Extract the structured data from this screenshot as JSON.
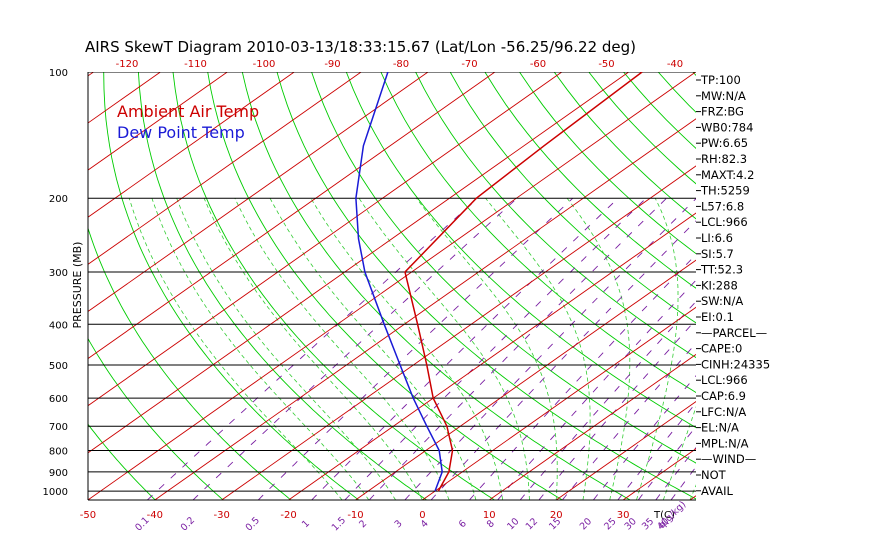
{
  "chart_data": {
    "type": "line",
    "title": "AIRS SkewT Diagram 2010-03-13/18:33:15.67 (Lat/Lon -56.25/96.22 deg)",
    "ylabel": "PRESSURE (MB)",
    "pressure_ticks": [
      100,
      200,
      300,
      400,
      500,
      600,
      700,
      800,
      900,
      1000
    ],
    "bottom_temp_ticks": [
      -50,
      -40,
      -30,
      -20,
      -10,
      0,
      10,
      20,
      30
    ],
    "bottom_temp_unit_label": "T(C)",
    "top_temp_ticks": [
      -120,
      -110,
      -100,
      -90,
      -80,
      -70,
      -60,
      -50,
      -40
    ],
    "mixing_ratio_ticks": [
      "0.1",
      "0.2",
      "0.5",
      "1",
      "1.5",
      "2",
      "3",
      "4",
      "6",
      "8",
      "10",
      "12",
      "15",
      "20",
      "25",
      "30",
      "35",
      "40"
    ],
    "mixing_ratio_unit_label": "q(g/kg)",
    "legend": {
      "air": "Ambient Air Temp",
      "dew": "Dew Point Temp"
    },
    "series": [
      {
        "name": "Ambient Air Temp",
        "color": "#cc0000",
        "points": [
          {
            "p": 1000,
            "t": 0.5
          },
          {
            "p": 900,
            "t": -2
          },
          {
            "p": 800,
            "t": -6
          },
          {
            "p": 700,
            "t": -12
          },
          {
            "p": 600,
            "t": -20
          },
          {
            "p": 500,
            "t": -28
          },
          {
            "p": 400,
            "t": -38
          },
          {
            "p": 300,
            "t": -51
          },
          {
            "p": 200,
            "t": -56
          },
          {
            "p": 150,
            "t": -57
          },
          {
            "p": 100,
            "t": -58
          }
        ]
      },
      {
        "name": "Dew Point Temp",
        "color": "#1a1ad6",
        "points": [
          {
            "p": 1000,
            "t": 0
          },
          {
            "p": 900,
            "t": -3
          },
          {
            "p": 800,
            "t": -8
          },
          {
            "p": 700,
            "t": -15
          },
          {
            "p": 600,
            "t": -23
          },
          {
            "p": 500,
            "t": -32
          },
          {
            "p": 400,
            "t": -43
          },
          {
            "p": 300,
            "t": -57
          },
          {
            "p": 250,
            "t": -65
          },
          {
            "p": 200,
            "t": -74
          },
          {
            "p": 150,
            "t": -84
          },
          {
            "p": 100,
            "t": -96
          }
        ]
      }
    ]
  },
  "side_panel": [
    "TP:100",
    "MW:N/A",
    "FRZ:BG",
    "WB0:784",
    "PW:6.65",
    "RH:82.3",
    "MAXT:4.2",
    "TH:5259",
    "L57:6.8",
    "LCL:966",
    "LI:6.6",
    "SI:5.7",
    "TT:52.3",
    "KI:288",
    "SW:N/A",
    "EI:0.1",
    "—PARCEL—",
    "CAPE:0",
    "CINH:24335",
    "LCL:966",
    "CAP:6.9",
    "LFC:N/A",
    "EL:N/A",
    "MPL:N/A",
    "—WIND—",
    "NOT",
    "AVAIL"
  ],
  "colors": {
    "isotherm": "#cc0000",
    "dry_adiabat": "#00cc00",
    "moist_adiabat": "#33cc33",
    "mixing_ratio": "#7a1fa2",
    "isobar": "#000000",
    "air": "#cc0000",
    "dew": "#1a1ad6"
  }
}
